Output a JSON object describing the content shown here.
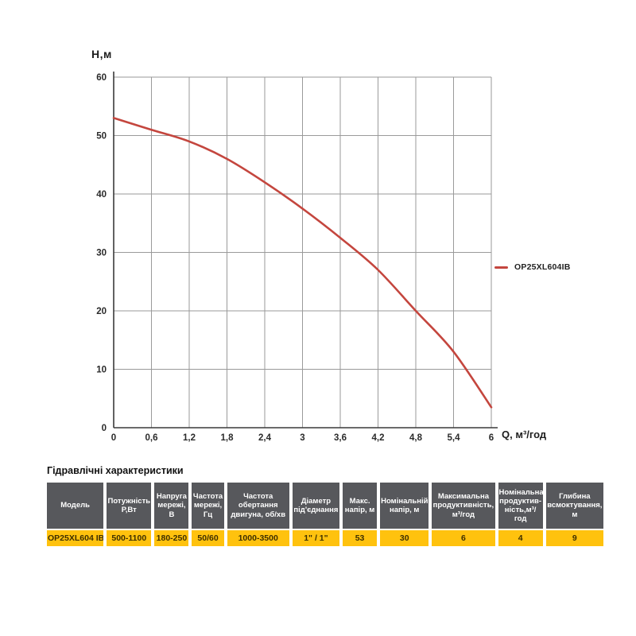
{
  "chart": {
    "y_axis_title": "H,м",
    "x_axis_title": "Q,  м³/год",
    "legend": {
      "label": "OP25XL604IB"
    }
  },
  "chart_data": {
    "type": "line",
    "title": "",
    "xlabel": "Q, м³/год",
    "ylabel": "H,м",
    "xlim": [
      0,
      6
    ],
    "ylim": [
      0,
      60
    ],
    "grid": true,
    "legend_position": "right-center",
    "x_ticks": [
      "0",
      "0,6",
      "1,2",
      "1,8",
      "2,4",
      "3",
      "3,6",
      "4,2",
      "4,8",
      "5,4",
      "6"
    ],
    "y_ticks": [
      "0",
      "10",
      "20",
      "30",
      "40",
      "50",
      "60"
    ],
    "series": [
      {
        "name": "OP25XL604IB",
        "color": "#c4463e",
        "x": [
          0,
          0.6,
          1.2,
          1.8,
          2.4,
          3.0,
          3.6,
          4.2,
          4.8,
          5.4,
          6.0
        ],
        "y": [
          53,
          51,
          49,
          46,
          42,
          37.5,
          32.5,
          27,
          20,
          13,
          3.5
        ]
      }
    ]
  },
  "table": {
    "title": "Гідравлічні характеристики",
    "columns": [
      "Модель",
      "Потужність Р,Вт",
      "Напруга мережі, В",
      "Частота мережі, Гц",
      "Частота обертання двигуна, об/хв",
      "Діаметр під'єднання",
      "Макс. напір, м",
      "Номінальній напір, м",
      "Максимальна продуктивність, м³/год",
      "Номінальна продуктив-ність,м³/год",
      "Глибина всмоктування, м"
    ],
    "row": [
      "OP25XL604 IB",
      "500-1100",
      "180-250",
      "50/60",
      "1000-3500",
      "1\" / 1\"",
      "53",
      "30",
      "6",
      "4",
      "9"
    ]
  },
  "colors": {
    "curve": "#c4463e",
    "gridline": "#9a9a9a",
    "axis": "#3a3a3a",
    "table_header_bg": "#57585c",
    "table_row_bg": "#ffc20e"
  }
}
